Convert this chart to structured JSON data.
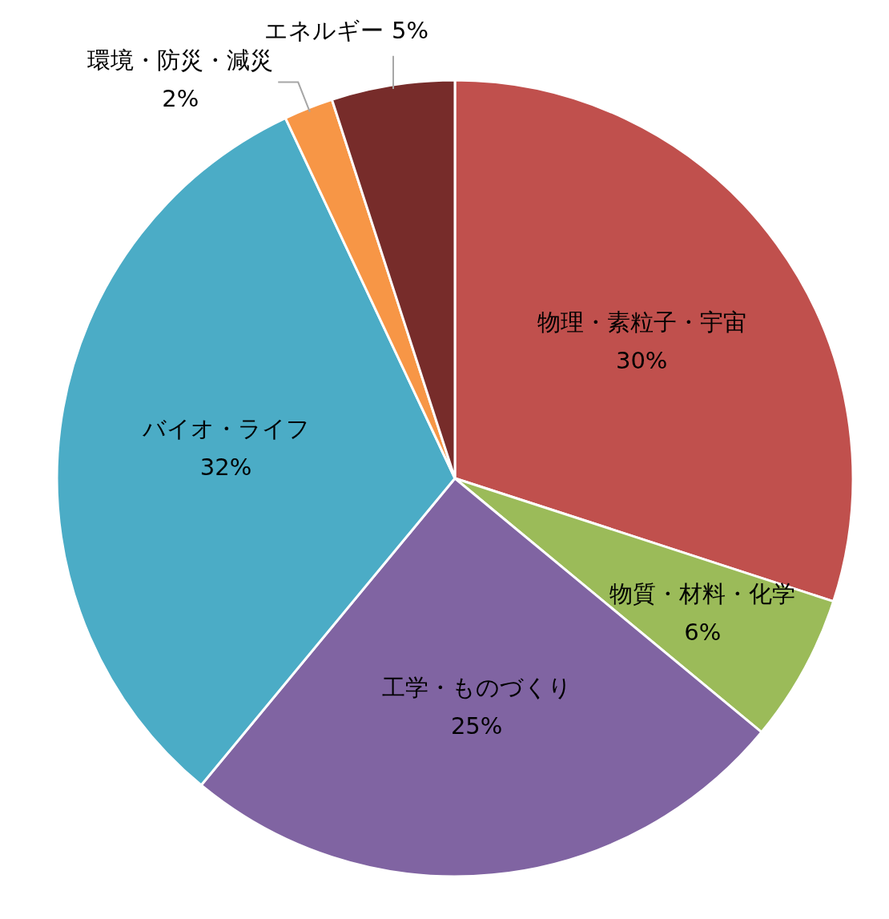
{
  "chart_data": {
    "type": "pie",
    "categories": [
      "物理・素粒子・宇宙",
      "物質・材料・化学",
      "工学・ものづくり",
      "バイオ・ライフ",
      "環境・防災・減災",
      "エネルギー"
    ],
    "values": [
      30,
      6,
      25,
      32,
      2,
      5
    ],
    "colors": [
      "#c0504d",
      "#9bbb59",
      "#8064a2",
      "#4bacc6",
      "#f79646",
      "#772c2a"
    ],
    "value_labels": [
      "30%",
      "6%",
      "25%",
      "32%",
      "2%",
      "5%"
    ]
  }
}
